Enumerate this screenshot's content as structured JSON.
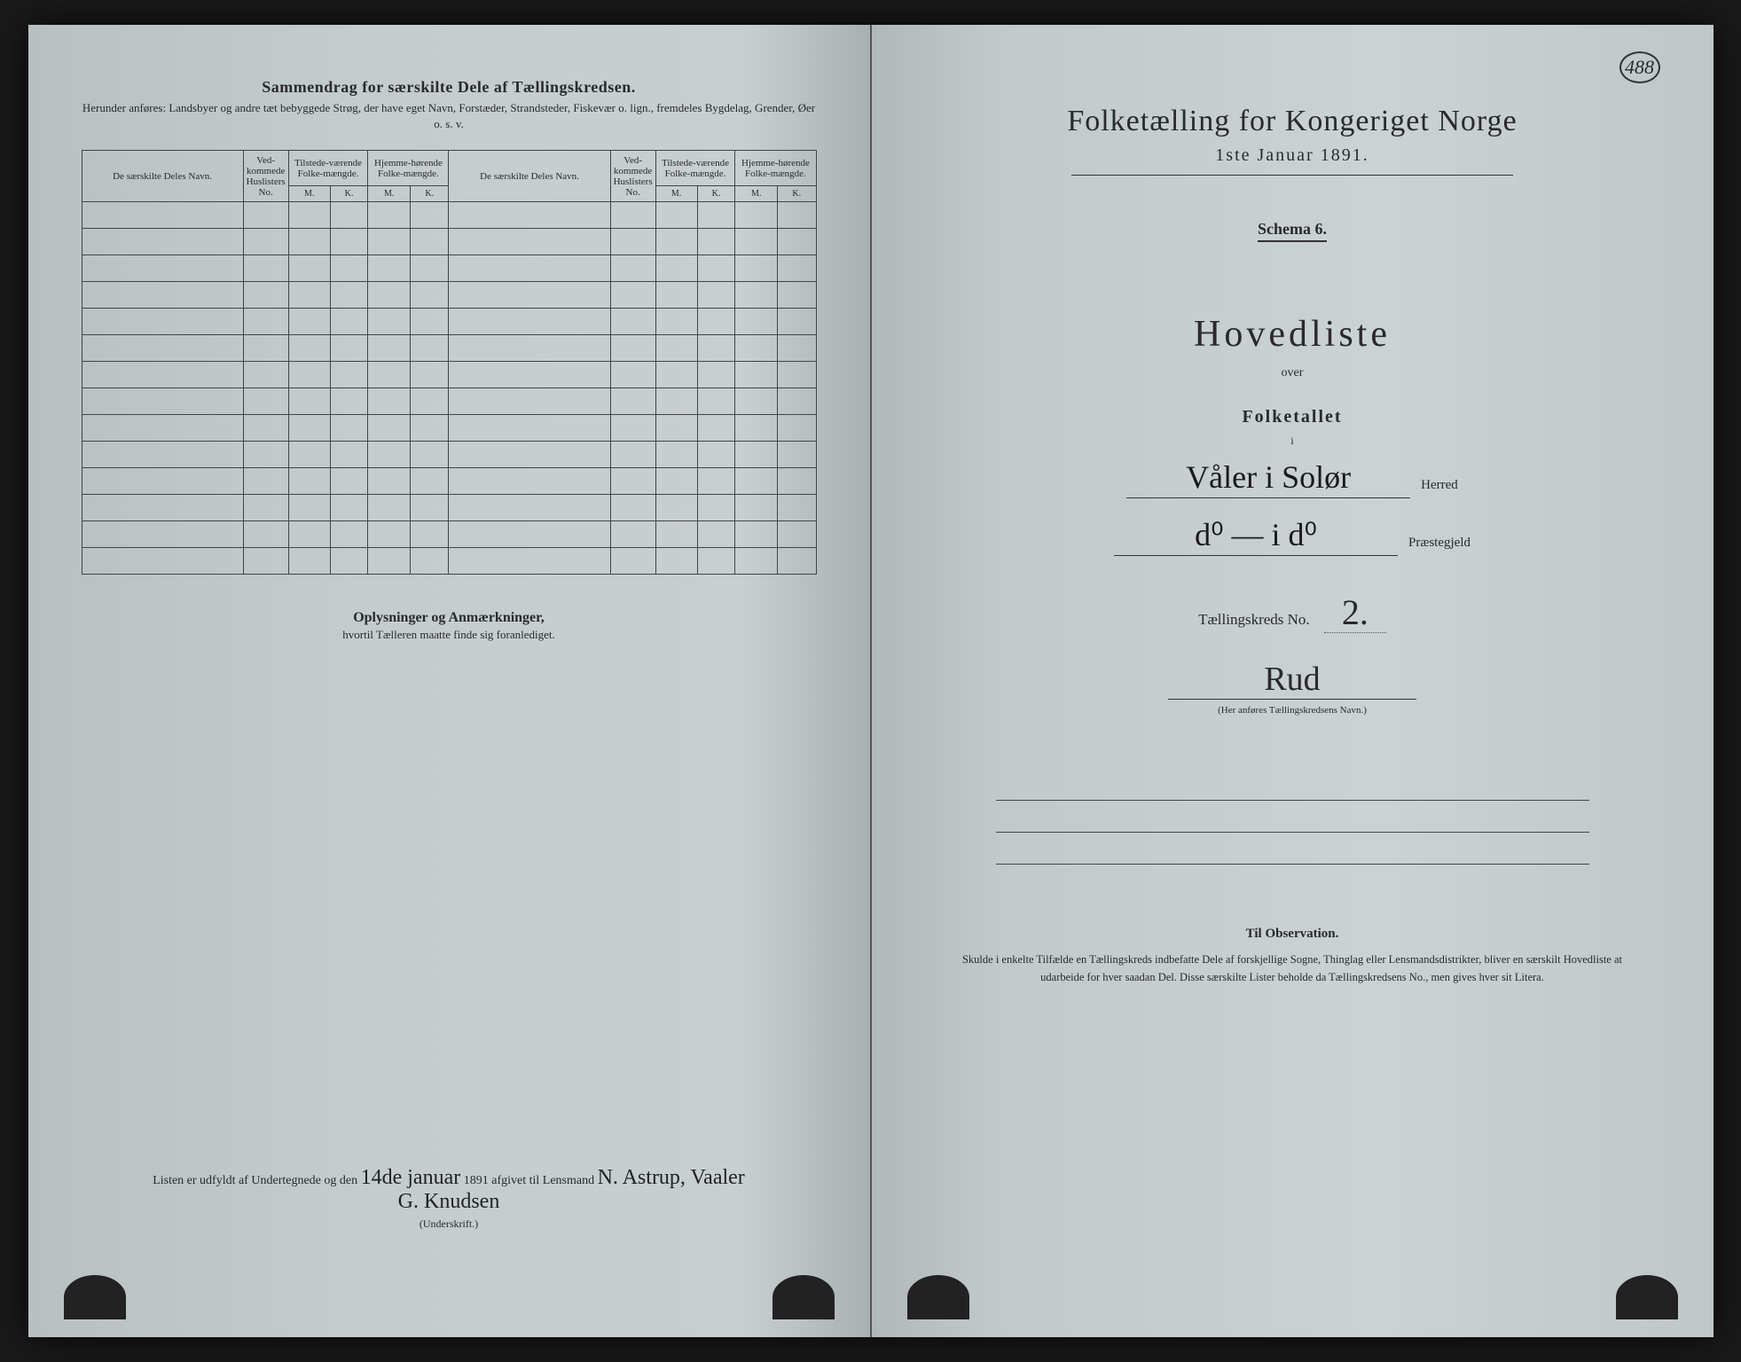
{
  "page_number": "488",
  "left": {
    "title": "Sammendrag for særskilte Dele af Tællingskredsen.",
    "subtitle": "Herunder anføres: Landsbyer og andre tæt bebyggede Strøg, der have eget Navn, Forstæder, Strandsteder, Fiskevær o. lign., fremdeles Bygdelag, Grender, Øer o. s. v.",
    "cols": {
      "navn": "De særskilte Deles Navn.",
      "husl": "Ved-kommede Huslisters No.",
      "tilst": "Tilstede-værende Folke-mængde.",
      "hjemme": "Hjemme-hørende Folke-mængde.",
      "m": "M.",
      "k": "K."
    },
    "notes_title": "Oplysninger og Anmærkninger,",
    "notes_sub": "hvortil Tælleren maatte finde sig foranlediget.",
    "sig_prefix": "Listen er udfyldt af Undertegnede og den",
    "sig_date": "14de januar",
    "sig_year": "1891 afgivet til Lensmand",
    "sig_name1": "N. Astrup, Vaaler",
    "sig_name2": "G. Knudsen",
    "sig_caption": "(Underskrift.)"
  },
  "right": {
    "title": "Folketælling for Kongeriget Norge",
    "date": "1ste Januar 1891.",
    "schema": "Schema 6.",
    "hovedliste": "Hovedliste",
    "over": "over",
    "folketallet": "Folketallet",
    "i": "i",
    "herred_value": "Våler i Solør",
    "herred_label": "Herred",
    "praest_value": "d⁰ — i d⁰",
    "praest_label": "Præstegjeld",
    "kreds_label": "Tællingskreds No.",
    "kreds_no": "2.",
    "kreds_name": "Rud",
    "kreds_caption": "(Her anføres Tællingskredsens Navn.)",
    "obs_title": "Til Observation.",
    "obs_text": "Skulde i enkelte Tilfælde en Tællingskreds indbefatte Dele af forskjellige Sogne, Thinglag eller Lensmandsdistrikter, bliver en særskilt Hovedliste at udarbeide for hver saadan Del. Disse særskilte Lister beholde da Tællingskredsens No., men gives hver sit Litera."
  },
  "colors": {
    "paper_left": "#c5ccce",
    "paper_right": "#cbd2d4",
    "ink": "#2a2a2a",
    "border": "#444444"
  }
}
